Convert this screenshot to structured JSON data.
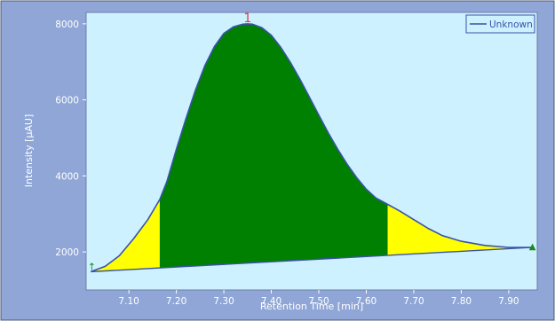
{
  "chart_data": {
    "type": "area",
    "title": "",
    "xlabel": "Retention Time [min]",
    "ylabel": "Intensity [µAU]",
    "xlim": [
      7.01,
      7.96
    ],
    "ylim": [
      1000,
      8300
    ],
    "x_ticks": [
      "7.10",
      "7.20",
      "7.30",
      "7.40",
      "7.50",
      "7.60",
      "7.70",
      "7.80",
      "7.90"
    ],
    "y_ticks": [
      "2000",
      "4000",
      "6000",
      "8000"
    ],
    "legend": {
      "placement": "top-right",
      "entries": [
        "Unknown"
      ]
    },
    "peak_label": "1",
    "peak": {
      "apex_x": 7.35,
      "apex_y": 8000
    },
    "baseline": {
      "start": [
        7.02,
        1480
      ],
      "end": [
        7.95,
        2120
      ]
    },
    "shaded_region": {
      "from_x": 7.165,
      "to_x": 7.645
    },
    "series": [
      {
        "name": "Unknown",
        "x": [
          7.02,
          7.05,
          7.08,
          7.11,
          7.14,
          7.165,
          7.18,
          7.2,
          7.22,
          7.24,
          7.26,
          7.28,
          7.3,
          7.32,
          7.34,
          7.35,
          7.36,
          7.38,
          7.4,
          7.42,
          7.44,
          7.46,
          7.48,
          7.5,
          7.52,
          7.54,
          7.56,
          7.58,
          7.6,
          7.62,
          7.645,
          7.67,
          7.7,
          7.73,
          7.76,
          7.8,
          7.85,
          7.9,
          7.95
        ],
        "y": [
          1480,
          1620,
          1900,
          2350,
          2850,
          3380,
          3850,
          4700,
          5500,
          6250,
          6900,
          7400,
          7750,
          7920,
          7990,
          8000,
          7990,
          7900,
          7700,
          7380,
          6990,
          6550,
          6080,
          5600,
          5130,
          4700,
          4300,
          3950,
          3650,
          3420,
          3250,
          3080,
          2850,
          2620,
          2430,
          2280,
          2170,
          2120,
          2120
        ]
      }
    ],
    "colors": {
      "plot_background": "#cdf1ff",
      "frame_background": "#8fa6d6",
      "shaded_area": "#008000",
      "tail_area": "#ffff00",
      "line": "#3a52a8",
      "peak_label": "#e0404a",
      "marker": "#1e8a1e"
    }
  }
}
